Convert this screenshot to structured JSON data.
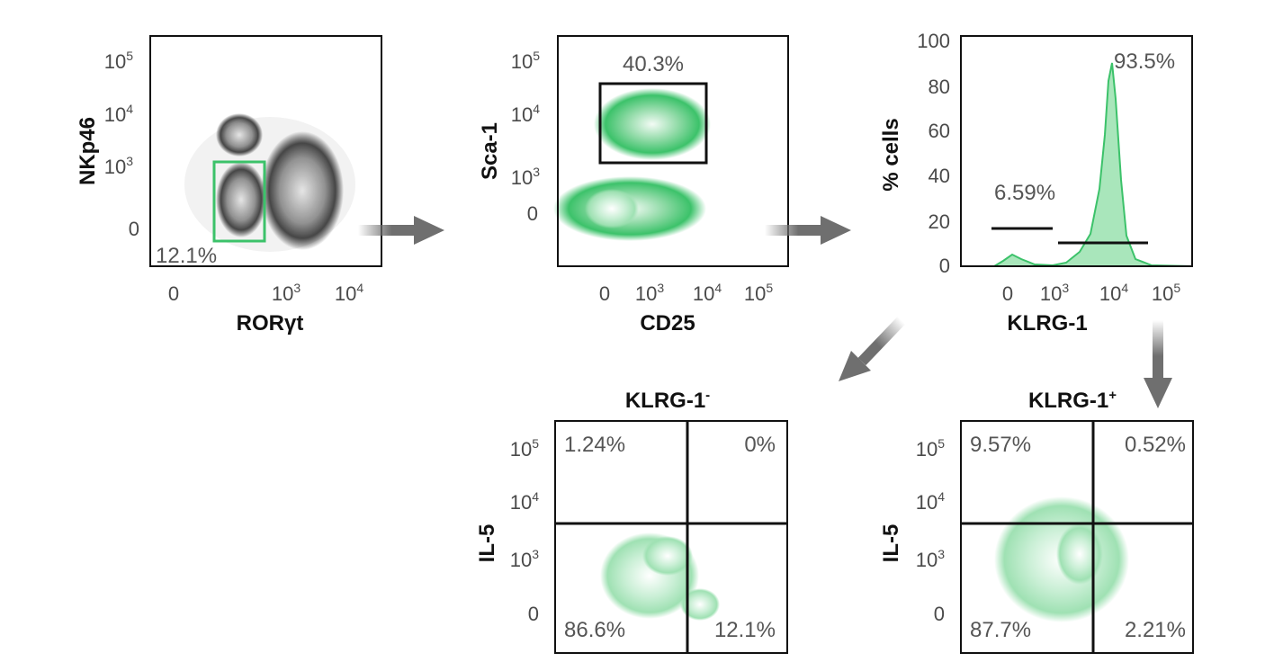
{
  "colors": {
    "accent": "#3cc26a",
    "frame": "#111111",
    "arrow": "#6f6f6f",
    "text": "#4a4a4a"
  },
  "panels": {
    "p1": {
      "ylabel": "NKp46",
      "xlabel": "RORγt",
      "yticks": [
        {
          "b": "10",
          "e": "5"
        },
        {
          "b": "10",
          "e": "4"
        },
        {
          "b": "10",
          "e": "3"
        },
        {
          "b": "0",
          "e": ""
        }
      ],
      "xticks": [
        {
          "b": "0",
          "e": ""
        },
        {
          "b": "10",
          "e": "3"
        },
        {
          "b": "10",
          "e": "4"
        }
      ],
      "gate": "12.1%"
    },
    "p2": {
      "ylabel": "Sca-1",
      "xlabel": "CD25",
      "yticks": [
        {
          "b": "10",
          "e": "5"
        },
        {
          "b": "10",
          "e": "4"
        },
        {
          "b": "10",
          "e": "3"
        },
        {
          "b": "0",
          "e": ""
        }
      ],
      "xticks": [
        {
          "b": "0",
          "e": ""
        },
        {
          "b": "10",
          "e": "3"
        },
        {
          "b": "10",
          "e": "4"
        },
        {
          "b": "10",
          "e": "5"
        }
      ],
      "gate": "40.3%"
    },
    "p3": {
      "ylabel": "% cells",
      "xlabel": "KLRG-1",
      "yticks": [
        "100",
        "80",
        "60",
        "40",
        "20",
        "0"
      ],
      "xticks": [
        {
          "b": "0",
          "e": ""
        },
        {
          "b": "10",
          "e": "3"
        },
        {
          "b": "10",
          "e": "4"
        },
        {
          "b": "10",
          "e": "5"
        }
      ],
      "neg_gate": "6.59%",
      "pos_gate": "93.5%"
    },
    "p4": {
      "title": "KLRG-1",
      "title_sup": "-",
      "ylabel": "IL-5",
      "yticks": [
        {
          "b": "10",
          "e": "5"
        },
        {
          "b": "10",
          "e": "4"
        },
        {
          "b": "10",
          "e": "3"
        },
        {
          "b": "0",
          "e": ""
        }
      ],
      "q_ul": "1.24%",
      "q_ur": "0%",
      "q_ll": "86.6%",
      "q_lr": "12.1%"
    },
    "p5": {
      "title": "KLRG-1",
      "title_sup": "+",
      "ylabel": "IL-5",
      "yticks": [
        {
          "b": "10",
          "e": "5"
        },
        {
          "b": "10",
          "e": "4"
        },
        {
          "b": "10",
          "e": "3"
        },
        {
          "b": "0",
          "e": ""
        }
      ],
      "q_ul": "9.57%",
      "q_ur": "0.52%",
      "q_ll": "87.7%",
      "q_lr": "2.21%"
    }
  }
}
